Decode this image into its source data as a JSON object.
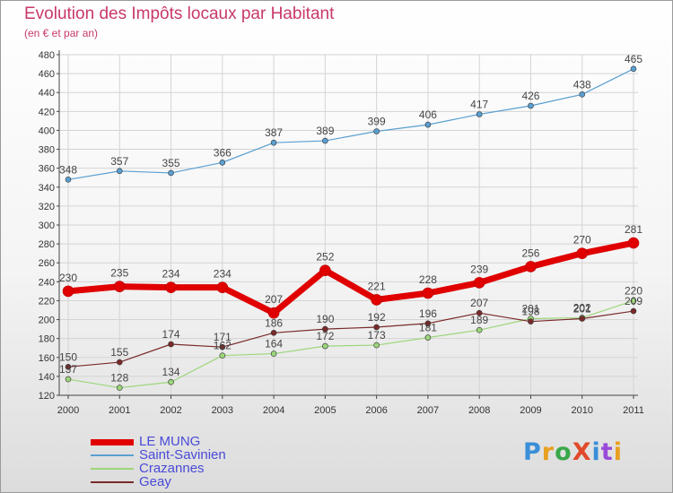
{
  "chart_data": {
    "type": "line",
    "title": "Evolution des Impôts locaux par Habitant",
    "subtitle": "(en € et par an)",
    "x": [
      "2000",
      "2001",
      "2002",
      "2003",
      "2004",
      "2005",
      "2006",
      "2007",
      "2008",
      "2009",
      "2010",
      "2011"
    ],
    "ylim": [
      120,
      480
    ],
    "yticks": [
      120,
      140,
      160,
      180,
      200,
      220,
      240,
      260,
      280,
      300,
      320,
      340,
      360,
      380,
      400,
      420,
      440,
      460,
      480
    ],
    "grid": true,
    "legend_position": "bottom-left",
    "series": [
      {
        "name": "LE MUNG",
        "color": "#e00000",
        "values": [
          230,
          235,
          234,
          234,
          207,
          252,
          221,
          228,
          239,
          256,
          270,
          281
        ]
      },
      {
        "name": "Saint-Savinien",
        "color": "#5a9fd0",
        "values": [
          348,
          357,
          355,
          366,
          387,
          389,
          399,
          406,
          417,
          426,
          438,
          465
        ]
      },
      {
        "name": "Crazannes",
        "color": "#9cd67a",
        "values": [
          137,
          128,
          134,
          162,
          164,
          172,
          173,
          181,
          189,
          201,
          202,
          220
        ]
      },
      {
        "name": "Geay",
        "color": "#7a2a2a",
        "values": [
          150,
          155,
          174,
          171,
          186,
          190,
          192,
          196,
          207,
          198,
          201,
          209
        ]
      }
    ]
  },
  "logo": {
    "text": "ProXiti",
    "colors": [
      "#3a8fd8",
      "#e8a020",
      "#3aa84a",
      "#e04a2a",
      "#3a8fd8",
      "#9a4ad8",
      "#e8a020"
    ]
  }
}
